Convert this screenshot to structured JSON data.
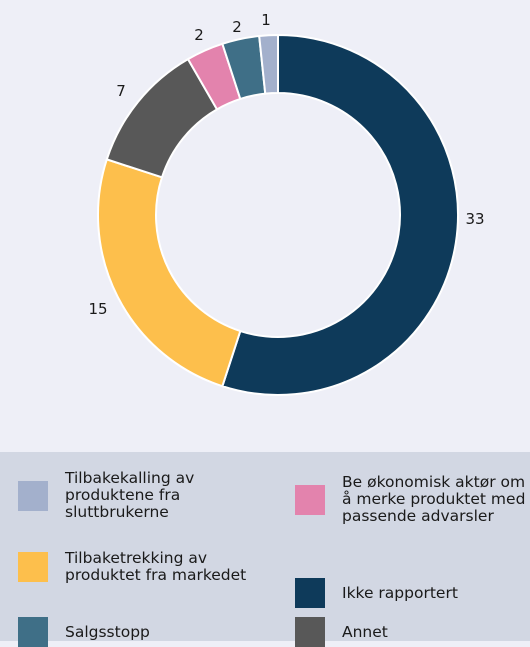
{
  "chart_data": {
    "type": "pie",
    "style": "donut",
    "categories": [
      "Ikke rapportert",
      "Tilbaketrekking av produktet fra markedet",
      "Annet",
      "Be økonomisk aktør om å merke produktet med passende advarsler",
      "Salgsstopp",
      "Tilbakekalling av produktene fra sluttbrukerne"
    ],
    "values": [
      33,
      15,
      7,
      2,
      2,
      1
    ],
    "colors": [
      "#0e3a5a",
      "#fdbf4c",
      "#585858",
      "#e383ad",
      "#3f6f87",
      "#a3b0cc"
    ],
    "legend_position": "bottom"
  },
  "legend": {
    "items": [
      {
        "label": "Tilbakekalling av\nproduktene fra\nsluttbrukerne",
        "color": "#a3b0cc"
      },
      {
        "label": "Be økonomisk aktør om\nå merke produktet med\npassende advarsler",
        "color": "#e383ad"
      },
      {
        "label": "Tilbaketrekking av\nproduktet fra markedet",
        "color": "#fdbf4c"
      },
      {
        "label": "Ikke rapportert",
        "color": "#0e3a5a"
      },
      {
        "label": "Salgsstopp",
        "color": "#3f6f87"
      },
      {
        "label": "Annet",
        "color": "#585858"
      }
    ]
  }
}
